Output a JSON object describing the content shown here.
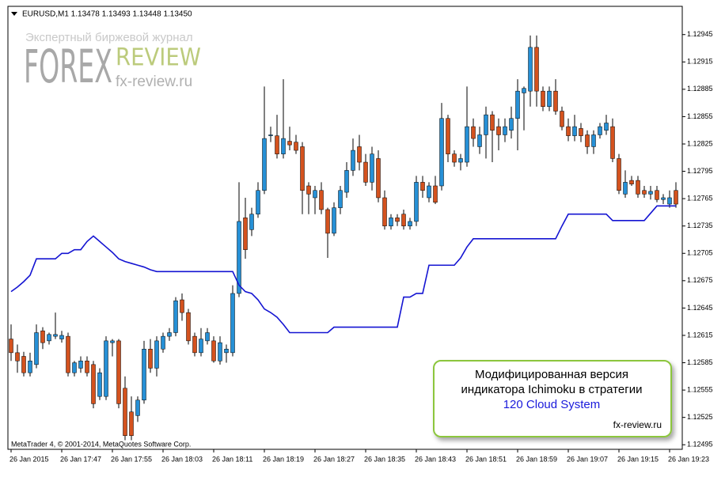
{
  "chart_data": {
    "type": "candlestick",
    "title": "EURUSD,M1  1.13478 1.13493 1.13448 1.13450",
    "copyright": "MetaTrader 4, © 2001-2014, MetaQuotes Software Corp.",
    "watermark": {
      "subtitle": "Экспертный биржевой журнал",
      "word1": "FOREX",
      "word2": "REVIEW",
      "site": "fx-review.ru"
    },
    "annotation": {
      "line1": "Модифицированная версия",
      "line2": "индикатора Ichimoku в стратегии",
      "line3": "120 Cloud System",
      "site": "fx-review.ru"
    },
    "up_color": "#2690d6",
    "down_color": "#d4521e",
    "ylim": [
      1.1249,
      1.12976
    ],
    "yticks": [
      1.12945,
      1.12915,
      1.12885,
      1.12855,
      1.12825,
      1.12795,
      1.12765,
      1.12735,
      1.12705,
      1.12675,
      1.12645,
      1.12615,
      1.12585,
      1.12555,
      1.12525,
      1.12495
    ],
    "categories": [
      "26 Jan 2015",
      null,
      null,
      null,
      null,
      null,
      null,
      null,
      "26 Jan 17:47",
      null,
      null,
      null,
      null,
      null,
      null,
      null,
      "26 Jan 17:55",
      null,
      null,
      null,
      null,
      null,
      null,
      null,
      "26 Jan 18:03",
      null,
      null,
      null,
      null,
      null,
      null,
      null,
      "26 Jan 18:11",
      null,
      null,
      null,
      null,
      null,
      null,
      null,
      "26 Jan 18:19",
      null,
      null,
      null,
      null,
      null,
      null,
      null,
      "26 Jan 18:27",
      null,
      null,
      null,
      null,
      null,
      null,
      null,
      "26 Jan 18:35",
      null,
      null,
      null,
      null,
      null,
      null,
      null,
      "26 Jan 18:43",
      null,
      null,
      null,
      null,
      null,
      null,
      null,
      "26 Jan 18:51",
      null,
      null,
      null,
      null,
      null,
      null,
      null,
      "26 Jan 18:59",
      null,
      null,
      null,
      null,
      null,
      null,
      null,
      "26 Jan 19:07",
      null,
      null,
      null,
      null,
      null,
      null,
      null,
      "26 Jan 19:15",
      null,
      null,
      null,
      null,
      null,
      null,
      null,
      "26 Jan 19:23",
      null
    ],
    "open": [
      1.12611,
      1.12596,
      1.12592,
      1.12574,
      1.12583,
      1.1262,
      1.12609,
      1.12614,
      1.12611,
      1.12614,
      1.12574,
      1.12579,
      1.12587,
      1.12583,
      1.12548,
      1.12548,
      1.12607,
      1.12609,
      1.12557,
      1.12531,
      1.12527,
      1.12544,
      1.126,
      1.12579,
      1.126,
      1.12614,
      1.12618,
      1.12654,
      1.1264,
      1.12614,
      1.12596,
      1.12609,
      1.12609,
      1.12587,
      1.12596,
      1.12596,
      1.12661,
      1.12744,
      1.12731,
      1.12748,
      1.12774,
      1.12834,
      1.12834,
      1.12814,
      1.12828,
      1.12827,
      1.12822,
      1.12779,
      1.12766,
      1.12774,
      1.12753,
      1.12727,
      1.12755,
      1.12772,
      1.12796,
      1.12822,
      1.12805,
      1.12783,
      1.12809,
      1.12766,
      1.12735,
      1.12744,
      1.12748,
      1.12735,
      1.1274,
      1.12783,
      1.12766,
      1.12779,
      1.12779,
      1.12853,
      1.12814,
      1.12805,
      1.12805,
      1.12844,
      1.12822,
      1.12835,
      1.12857,
      1.12844,
      1.12835,
      1.1284,
      1.12853,
      1.12881,
      1.12883,
      1.12931,
      1.12883,
      1.12866,
      1.12883,
      1.12861,
      1.12844,
      1.12834,
      1.12842,
      1.12835,
      1.12822,
      1.12835,
      1.1284,
      1.12844,
      1.12809,
      1.1277,
      1.12785,
      1.12785,
      1.12774,
      1.1277,
      1.12774,
      1.12764,
      1.12759,
      1.12774
    ],
    "high": [
      1.12627,
      1.12605,
      1.12597,
      1.12596,
      1.12627,
      1.12624,
      1.12618,
      1.1264,
      1.1262,
      1.12618,
      1.12587,
      1.12592,
      1.12592,
      1.12587,
      1.12579,
      1.12614,
      1.12611,
      1.12611,
      1.1257,
      1.12548,
      1.12548,
      1.12609,
      1.12611,
      1.12614,
      1.12618,
      1.12623,
      1.12657,
      1.12661,
      1.12644,
      1.12618,
      1.12623,
      1.12623,
      1.12614,
      1.12614,
      1.12605,
      1.1267,
      1.12783,
      1.12766,
      1.12755,
      1.12783,
      1.12888,
      1.12844,
      1.12857,
      1.12896,
      1.12844,
      1.12835,
      1.12827,
      1.12783,
      1.12779,
      1.12783,
      1.12755,
      1.12761,
      1.12779,
      1.12805,
      1.12831,
      1.12835,
      1.12814,
      1.12822,
      1.12818,
      1.12774,
      1.12748,
      1.12748,
      1.12753,
      1.12744,
      1.1279,
      1.1279,
      1.12783,
      1.1279,
      1.1287,
      1.12857,
      1.12818,
      1.12814,
      1.12888,
      1.12853,
      1.12844,
      1.12866,
      1.12861,
      1.12853,
      1.12853,
      1.12866,
      1.12896,
      1.12888,
      1.12944,
      1.12944,
      1.12888,
      1.12888,
      1.12896,
      1.12866,
      1.12853,
      1.12857,
      1.12848,
      1.1284,
      1.1284,
      1.12848,
      1.12857,
      1.12853,
      1.12814,
      1.12796,
      1.1279,
      1.1279,
      1.12779,
      1.12779,
      1.12779,
      1.1277,
      1.12774,
      1.12783
    ],
    "low": [
      1.12587,
      1.12574,
      1.1257,
      1.1257,
      1.12579,
      1.126,
      1.12605,
      1.12611,
      1.12607,
      1.1257,
      1.1257,
      1.12574,
      1.1257,
      1.12535,
      1.12544,
      1.12544,
      1.12592,
      1.12535,
      1.125,
      1.125,
      1.1252,
      1.1254,
      1.12574,
      1.1257,
      1.12596,
      1.12609,
      1.12614,
      1.12631,
      1.12605,
      1.12592,
      1.12592,
      1.12605,
      1.12585,
      1.12583,
      1.12585,
      1.12592,
      1.12657,
      1.12699,
      1.12724,
      1.12744,
      1.1277,
      1.12827,
      1.12809,
      1.12809,
      1.12818,
      1.12814,
      1.12748,
      1.12748,
      1.12748,
      1.12748,
      1.127,
      1.12724,
      1.12748,
      1.12766,
      1.1279,
      1.12796,
      1.12779,
      1.12774,
      1.12761,
      1.12731,
      1.12731,
      1.12735,
      1.12731,
      1.12731,
      1.12735,
      1.12766,
      1.12761,
      1.12759,
      1.12774,
      1.12805,
      1.128,
      1.12796,
      1.128,
      1.12822,
      1.12814,
      1.12809,
      1.12805,
      1.12818,
      1.12827,
      1.12831,
      1.12818,
      1.1284,
      1.12866,
      1.12866,
      1.12861,
      1.12861,
      1.12857,
      1.1284,
      1.12828,
      1.12828,
      1.12827,
      1.12814,
      1.12814,
      1.12831,
      1.12835,
      1.12805,
      1.1277,
      1.12766,
      1.12779,
      1.12766,
      1.12766,
      1.12764,
      1.12761,
      1.12759,
      1.12755,
      1.12755
    ],
    "close": [
      1.12596,
      1.12587,
      1.12574,
      1.12587,
      1.12618,
      1.12607,
      1.12616,
      1.12616,
      1.12615,
      1.12574,
      1.12585,
      1.12587,
      1.12574,
      1.1254,
      1.12574,
      1.12609,
      1.12609,
      1.1254,
      1.12505,
      1.12505,
      1.12544,
      1.126,
      1.12579,
      1.12609,
      1.12614,
      1.12618,
      1.12653,
      1.1264,
      1.12609,
      1.12596,
      1.12611,
      1.12618,
      1.12587,
      1.12607,
      1.126,
      1.12661,
      1.1274,
      1.12709,
      1.12748,
      1.12774,
      1.12831,
      1.12835,
      1.12814,
      1.12831,
      1.12824,
      1.12818,
      1.12774,
      1.1277,
      1.12774,
      1.12753,
      1.12727,
      1.12755,
      1.12774,
      1.12796,
      1.12818,
      1.12805,
      1.12783,
      1.12814,
      1.12766,
      1.12735,
      1.12744,
      1.1274,
      1.12735,
      1.1274,
      1.12783,
      1.12774,
      1.12779,
      1.12761,
      1.12853,
      1.12814,
      1.12805,
      1.12809,
      1.12844,
      1.12831,
      1.12835,
      1.12857,
      1.1284,
      1.12835,
      1.12844,
      1.12853,
      1.12883,
      1.12886,
      1.12931,
      1.12883,
      1.12866,
      1.12883,
      1.12861,
      1.12844,
      1.12834,
      1.12844,
      1.12834,
      1.12822,
      1.12835,
      1.12844,
      1.12848,
      1.12809,
      1.12774,
      1.12783,
      1.12781,
      1.1277,
      1.1277,
      1.12773,
      1.12764,
      1.12766,
      1.12766,
      1.12759
    ],
    "line": {
      "color": "#1414d2",
      "values": [
        1.12663,
        1.12668,
        1.12674,
        1.12681,
        1.12699,
        1.12699,
        1.12699,
        1.12699,
        1.12705,
        1.12705,
        1.12709,
        1.12709,
        1.12718,
        1.12724,
        1.12718,
        1.12712,
        1.12706,
        1.12699,
        1.12696,
        1.12694,
        1.12692,
        1.1269,
        1.12687,
        1.12685,
        1.12685,
        1.12685,
        1.12685,
        1.12685,
        1.12685,
        1.12685,
        1.12685,
        1.12685,
        1.12685,
        1.12685,
        1.12685,
        1.12685,
        1.1267,
        1.12663,
        1.12661,
        1.12654,
        1.12644,
        1.1264,
        1.12635,
        1.12627,
        1.12618,
        1.12618,
        1.12618,
        1.12618,
        1.12618,
        1.12618,
        1.12618,
        1.12624,
        1.12624,
        1.12624,
        1.12624,
        1.12624,
        1.12624,
        1.12624,
        1.12624,
        1.12624,
        1.12624,
        1.12624,
        1.12657,
        1.12657,
        1.12661,
        1.12661,
        1.12692,
        1.12692,
        1.12692,
        1.12692,
        1.12692,
        1.127,
        1.12712,
        1.12721,
        1.12721,
        1.12721,
        1.12721,
        1.12721,
        1.12721,
        1.12721,
        1.12721,
        1.12721,
        1.12721,
        1.12721,
        1.12721,
        1.12721,
        1.12721,
        1.12735,
        1.12748,
        1.12748,
        1.12748,
        1.12748,
        1.12748,
        1.12748,
        1.12748,
        1.12741,
        1.12741,
        1.12741,
        1.12741,
        1.12741,
        1.12741,
        1.12749,
        1.12757,
        1.12757,
        1.12757,
        1.12757
      ]
    }
  }
}
